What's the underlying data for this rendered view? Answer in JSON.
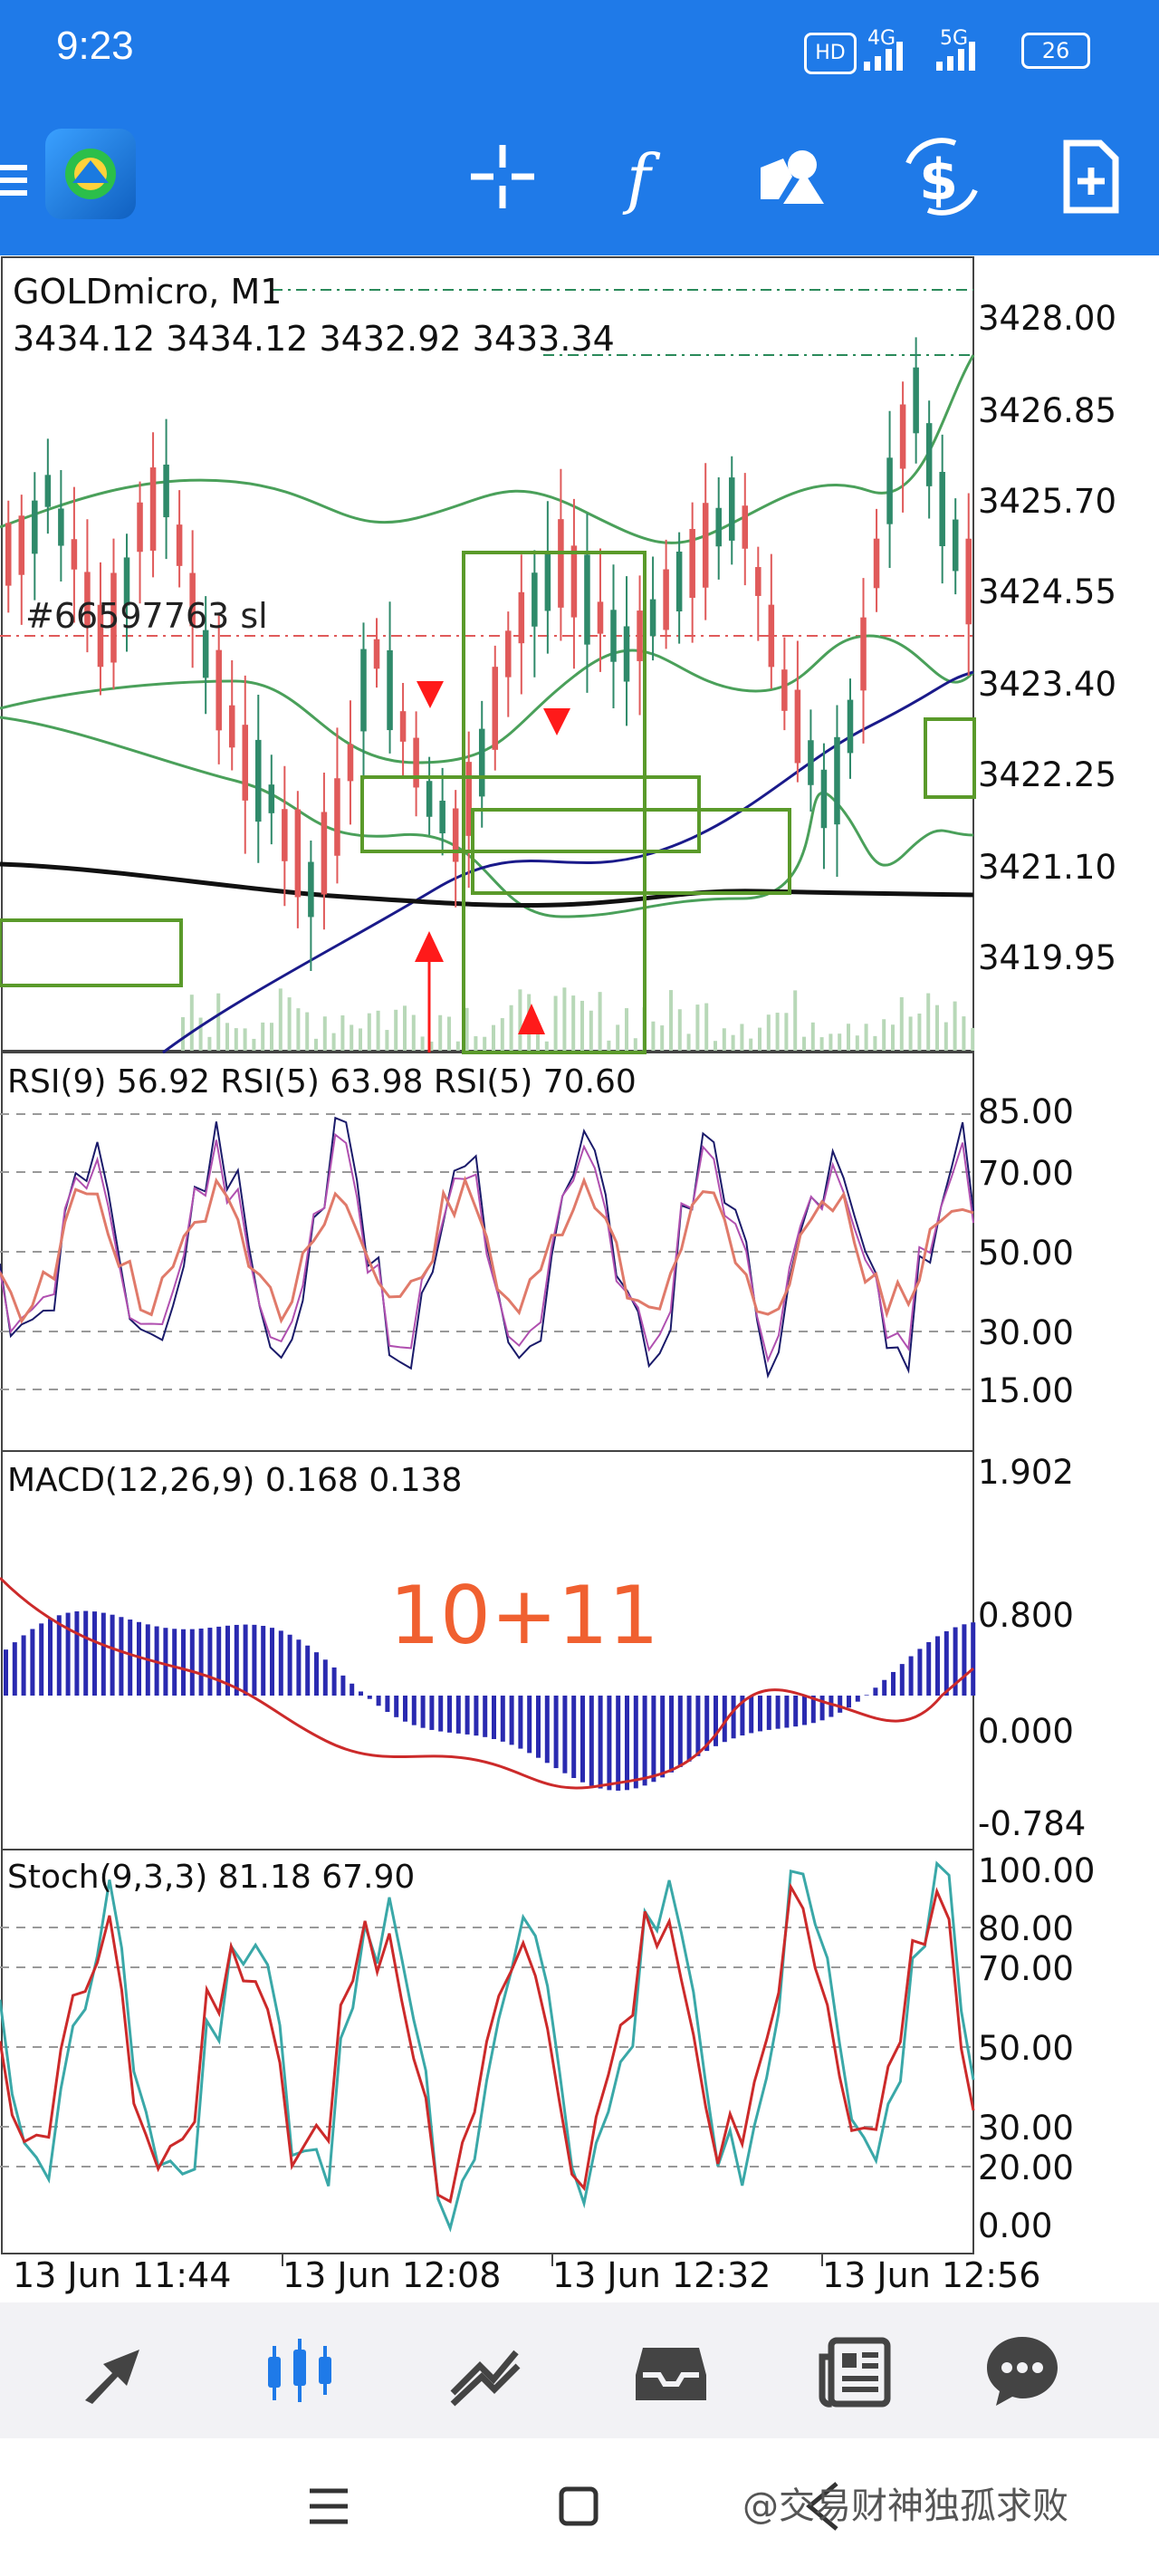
{
  "status": {
    "time": "9:23",
    "battery": "26",
    "signal1": "4G",
    "signal2": "5G",
    "hd": "HD"
  },
  "chart": {
    "symbol_line": "GOLDmicro, M1",
    "ohlc_line": "3434.12 3434.12 3432.92 3433.34",
    "order_label": "#66597763 sl",
    "price_axis": [
      "3428.00",
      "3426.85",
      "3425.70",
      "3424.55",
      "3423.40",
      "3422.25",
      "3421.10",
      "3419.95"
    ]
  },
  "rsi": {
    "title": "RSI(9) 56.92 RSI(5) 63.98 RSI(5) 70.60",
    "axis": [
      "85.00",
      "70.00",
      "50.00",
      "30.00",
      "15.00"
    ]
  },
  "macd": {
    "title": "MACD(12,26,9) 0.168 0.138",
    "axis": [
      "1.902",
      "0.800",
      "0.000",
      "-0.784"
    ],
    "overlay": "10+11"
  },
  "stoch": {
    "title": "Stoch(9,3,3) 81.18 67.90",
    "axis": [
      "100.00",
      "80.00",
      "70.00",
      "50.00",
      "30.00",
      "20.00",
      "0.00"
    ]
  },
  "time_axis": [
    "13 Jun 11:44",
    "13 Jun 12:08",
    "13 Jun 12:32",
    "13 Jun 12:56"
  ],
  "watermark": "@交易财神独孤求败",
  "colors": {
    "accent": "#1f7ae8",
    "bull": "#2f8a6a",
    "bear": "#e05a5a",
    "band": "#4aa05a",
    "box": "#5a9a2a",
    "ma": "#1a1a8a",
    "ma200": "#111111",
    "arrow": "#ff1a1a",
    "overlay": "#f06030"
  },
  "bottom_nav": [
    "trade-icon",
    "chart-icon",
    "history-icon",
    "inbox-icon",
    "news-icon",
    "chat-icon"
  ]
}
